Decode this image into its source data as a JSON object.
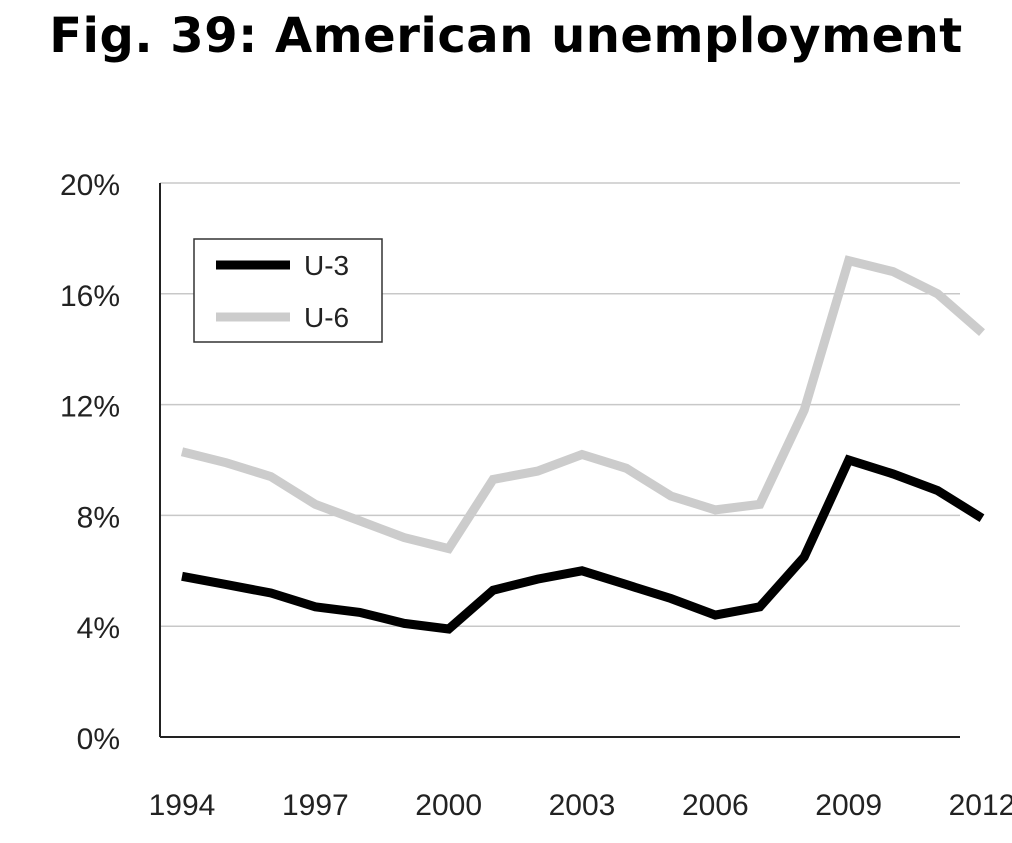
{
  "title": "Fig. 39: American unemployment",
  "chart_data": {
    "type": "line",
    "title": "Fig. 39: American unemployment",
    "xlabel": "",
    "ylabel": "",
    "x": [
      1994,
      1995,
      1996,
      1997,
      1998,
      1999,
      2000,
      2001,
      2002,
      2003,
      2004,
      2005,
      2006,
      2007,
      2008,
      2009,
      2010,
      2011,
      2012
    ],
    "xticks": [
      "1994",
      "1997",
      "2000",
      "2003",
      "2006",
      "2009",
      "2012"
    ],
    "yticks": [
      "0%",
      "4%",
      "8%",
      "12%",
      "16%",
      "20%"
    ],
    "ylim": [
      0,
      20
    ],
    "grid": "horizontal",
    "legend_position": "top-left",
    "series": [
      {
        "name": "U-3",
        "color": "#000000",
        "values": [
          5.8,
          5.5,
          5.2,
          4.7,
          4.5,
          4.1,
          3.9,
          5.3,
          5.7,
          6.0,
          5.5,
          5.0,
          4.4,
          4.7,
          6.5,
          10.0,
          9.5,
          8.9,
          7.9
        ]
      },
      {
        "name": "U-6",
        "color": "#cccccc",
        "values": [
          10.3,
          9.9,
          9.4,
          8.4,
          7.8,
          7.2,
          6.8,
          9.3,
          9.6,
          10.2,
          9.7,
          8.7,
          8.2,
          8.4,
          11.8,
          17.2,
          16.8,
          16.0,
          14.6
        ]
      }
    ]
  }
}
